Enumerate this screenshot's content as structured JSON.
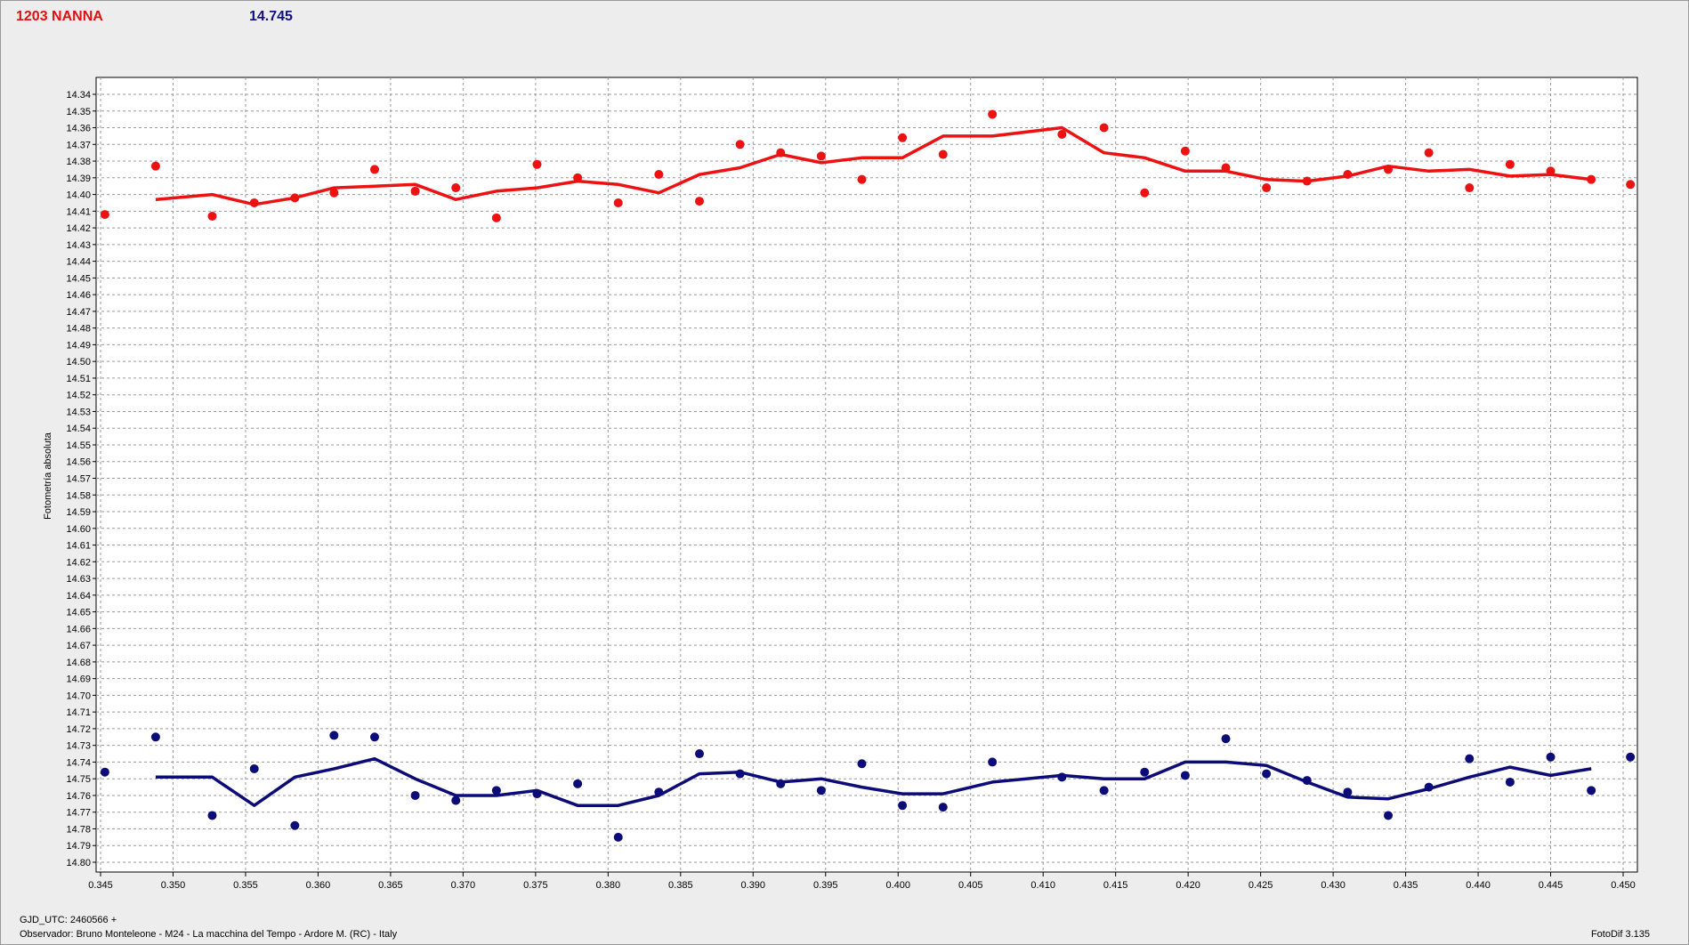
{
  "header": {
    "object_name": "1203 NANNA",
    "mean_value": "14.745"
  },
  "footer": {
    "gjd": "GJD_UTC: 2460566 +",
    "observer": "Observador: Bruno Monteleone - M24 - La macchina del Tempo - Ardore M. (RC) - Italy",
    "version": "FotoDif 3.135"
  },
  "colors": {
    "red": "#ee1111",
    "blue": "#0c0c78",
    "grid": "#9a9a9a",
    "plot_bg": "#ffffff"
  },
  "chart_data": {
    "type": "scatter",
    "title": "",
    "xlabel": "",
    "ylabel": "Fotometría absoluta",
    "xlim": [
      0.345,
      0.451
    ],
    "ylim": [
      14.34,
      14.8
    ],
    "y_inverted": true,
    "grid": true,
    "x_ticks": [
      "0.345",
      "0.350",
      "0.355",
      "0.360",
      "0.365",
      "0.370",
      "0.375",
      "0.380",
      "0.385",
      "0.390",
      "0.395",
      "0.400",
      "0.405",
      "0.410",
      "0.415",
      "0.420",
      "0.425",
      "0.430",
      "0.435",
      "0.440",
      "0.445",
      "0.450"
    ],
    "y_ticks": [
      "14.34",
      "14.35",
      "14.36",
      "14.37",
      "14.38",
      "14.39",
      "14.40",
      "14.41",
      "14.42",
      "14.43",
      "14.44",
      "14.45",
      "14.46",
      "14.47",
      "14.48",
      "14.49",
      "14.50",
      "14.51",
      "14.52",
      "14.53",
      "14.54",
      "14.55",
      "14.56",
      "14.57",
      "14.58",
      "14.59",
      "14.60",
      "14.61",
      "14.62",
      "14.63",
      "14.64",
      "14.65",
      "14.66",
      "14.67",
      "14.68",
      "14.69",
      "14.70",
      "14.71",
      "14.72",
      "14.73",
      "14.74",
      "14.75",
      "14.76",
      "14.77",
      "14.78",
      "14.79",
      "14.80"
    ],
    "series": [
      {
        "color": "#ee1111",
        "points": [
          [
            0.3453,
            14.412
          ],
          [
            0.3488,
            14.383
          ],
          [
            0.3527,
            14.413
          ],
          [
            0.3556,
            14.405
          ],
          [
            0.3584,
            14.402
          ],
          [
            0.3611,
            14.399
          ],
          [
            0.3639,
            14.385
          ],
          [
            0.3667,
            14.398
          ],
          [
            0.3695,
            14.396
          ],
          [
            0.3723,
            14.414
          ],
          [
            0.3751,
            14.382
          ],
          [
            0.3779,
            14.39
          ],
          [
            0.3807,
            14.405
          ],
          [
            0.3835,
            14.388
          ],
          [
            0.3863,
            14.404
          ],
          [
            0.3891,
            14.37
          ],
          [
            0.3919,
            14.375
          ],
          [
            0.3947,
            14.377
          ],
          [
            0.3975,
            14.391
          ],
          [
            0.4003,
            14.366
          ],
          [
            0.4031,
            14.376
          ],
          [
            0.4065,
            14.352
          ],
          [
            0.4113,
            14.364
          ],
          [
            0.4142,
            14.36
          ],
          [
            0.417,
            14.399
          ],
          [
            0.4198,
            14.374
          ],
          [
            0.4226,
            14.384
          ],
          [
            0.4254,
            14.396
          ],
          [
            0.4282,
            14.392
          ],
          [
            0.431,
            14.388
          ],
          [
            0.4338,
            14.385
          ],
          [
            0.4366,
            14.375
          ],
          [
            0.4394,
            14.396
          ],
          [
            0.4422,
            14.382
          ],
          [
            0.445,
            14.386
          ],
          [
            0.4478,
            14.391
          ],
          [
            0.4505,
            14.394
          ]
        ],
        "line": [
          [
            0.3488,
            14.403
          ],
          [
            0.3527,
            14.4
          ],
          [
            0.3556,
            14.406
          ],
          [
            0.3584,
            14.402
          ],
          [
            0.3611,
            14.396
          ],
          [
            0.3639,
            14.395
          ],
          [
            0.3667,
            14.394
          ],
          [
            0.3695,
            14.403
          ],
          [
            0.3723,
            14.398
          ],
          [
            0.3751,
            14.396
          ],
          [
            0.3779,
            14.392
          ],
          [
            0.3807,
            14.394
          ],
          [
            0.3835,
            14.399
          ],
          [
            0.3863,
            14.388
          ],
          [
            0.3891,
            14.384
          ],
          [
            0.3919,
            14.376
          ],
          [
            0.3947,
            14.381
          ],
          [
            0.3975,
            14.378
          ],
          [
            0.4003,
            14.378
          ],
          [
            0.4031,
            14.365
          ],
          [
            0.4065,
            14.365
          ],
          [
            0.4113,
            14.36
          ],
          [
            0.4142,
            14.375
          ],
          [
            0.417,
            14.378
          ],
          [
            0.4198,
            14.386
          ],
          [
            0.4226,
            14.386
          ],
          [
            0.4254,
            14.391
          ],
          [
            0.4282,
            14.392
          ],
          [
            0.431,
            14.389
          ],
          [
            0.4338,
            14.383
          ],
          [
            0.4366,
            14.386
          ],
          [
            0.4394,
            14.385
          ],
          [
            0.4422,
            14.389
          ],
          [
            0.445,
            14.388
          ],
          [
            0.4478,
            14.391
          ]
        ]
      },
      {
        "color": "#0c0c78",
        "points": [
          [
            0.3453,
            14.746
          ],
          [
            0.3488,
            14.725
          ],
          [
            0.3527,
            14.772
          ],
          [
            0.3556,
            14.744
          ],
          [
            0.3584,
            14.778
          ],
          [
            0.3611,
            14.724
          ],
          [
            0.3639,
            14.725
          ],
          [
            0.3667,
            14.76
          ],
          [
            0.3695,
            14.763
          ],
          [
            0.3723,
            14.757
          ],
          [
            0.3751,
            14.759
          ],
          [
            0.3779,
            14.753
          ],
          [
            0.3807,
            14.785
          ],
          [
            0.3835,
            14.758
          ],
          [
            0.3863,
            14.735
          ],
          [
            0.3891,
            14.747
          ],
          [
            0.3919,
            14.753
          ],
          [
            0.3947,
            14.757
          ],
          [
            0.3975,
            14.741
          ],
          [
            0.4003,
            14.766
          ],
          [
            0.4031,
            14.767
          ],
          [
            0.4065,
            14.74
          ],
          [
            0.4113,
            14.749
          ],
          [
            0.4142,
            14.757
          ],
          [
            0.417,
            14.746
          ],
          [
            0.4198,
            14.748
          ],
          [
            0.4226,
            14.726
          ],
          [
            0.4254,
            14.747
          ],
          [
            0.4282,
            14.751
          ],
          [
            0.431,
            14.758
          ],
          [
            0.4338,
            14.772
          ],
          [
            0.4366,
            14.755
          ],
          [
            0.4394,
            14.738
          ],
          [
            0.4422,
            14.752
          ],
          [
            0.445,
            14.737
          ],
          [
            0.4478,
            14.757
          ],
          [
            0.4505,
            14.737
          ]
        ],
        "line": [
          [
            0.3488,
            14.749
          ],
          [
            0.3527,
            14.749
          ],
          [
            0.3556,
            14.766
          ],
          [
            0.3584,
            14.749
          ],
          [
            0.3611,
            14.744
          ],
          [
            0.3639,
            14.738
          ],
          [
            0.3667,
            14.75
          ],
          [
            0.3695,
            14.76
          ],
          [
            0.3723,
            14.76
          ],
          [
            0.3751,
            14.757
          ],
          [
            0.3779,
            14.766
          ],
          [
            0.3807,
            14.766
          ],
          [
            0.3835,
            14.76
          ],
          [
            0.3863,
            14.747
          ],
          [
            0.3891,
            14.746
          ],
          [
            0.3919,
            14.752
          ],
          [
            0.3947,
            14.75
          ],
          [
            0.3975,
            14.755
          ],
          [
            0.4003,
            14.759
          ],
          [
            0.4031,
            14.759
          ],
          [
            0.4065,
            14.752
          ],
          [
            0.4113,
            14.748
          ],
          [
            0.4142,
            14.75
          ],
          [
            0.417,
            14.75
          ],
          [
            0.4198,
            14.74
          ],
          [
            0.4226,
            14.74
          ],
          [
            0.4254,
            14.742
          ],
          [
            0.4282,
            14.752
          ],
          [
            0.431,
            14.761
          ],
          [
            0.4338,
            14.762
          ],
          [
            0.4366,
            14.756
          ],
          [
            0.4394,
            14.749
          ],
          [
            0.4422,
            14.743
          ],
          [
            0.445,
            14.748
          ],
          [
            0.4478,
            14.744
          ]
        ]
      }
    ]
  }
}
